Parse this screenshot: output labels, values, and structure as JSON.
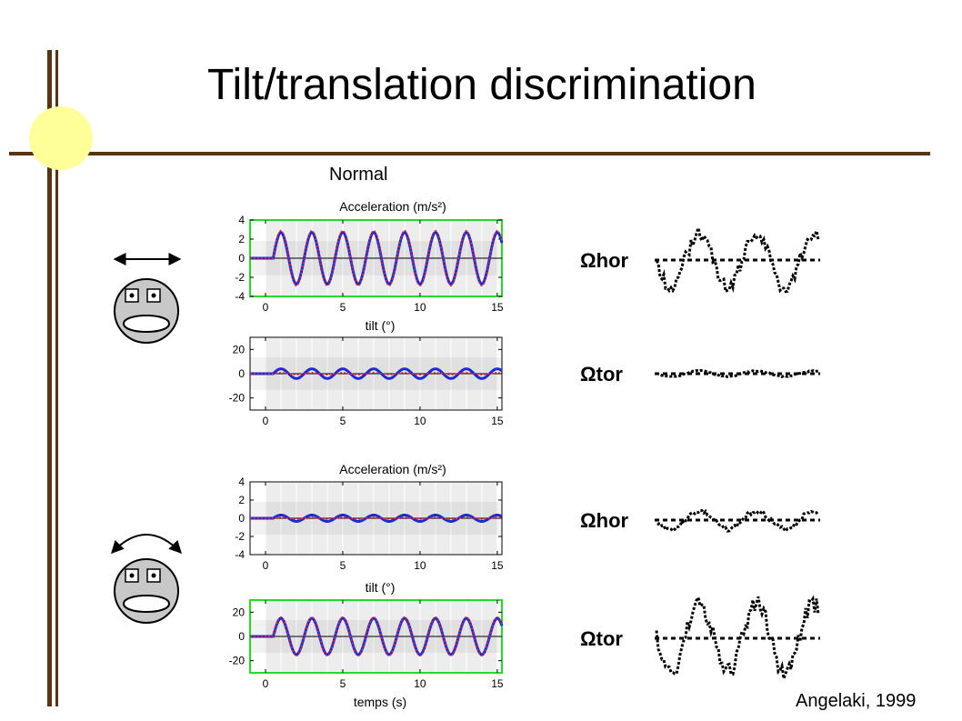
{
  "slide": {
    "title": "Tilt/translation discrimination",
    "subtitle": "Normal",
    "credit": "Angelaki, 1999",
    "xlabel": "temps (s)",
    "accent_colors": {
      "frame": "#5a3410",
      "circle": "#ffff99",
      "highlight_box": "#22dd22",
      "model_line": "#1a2ad6",
      "reference_dash": "#ff2020"
    }
  },
  "figures": {
    "right_panel_labels": [
      "Ωhor",
      "Ωtor",
      "Ωhor",
      "Ωtor"
    ],
    "icons": [
      "double-arrow-horizontal-icon",
      "monkey-face-icon",
      "curved-double-arrow-icon",
      "monkey-face-icon"
    ]
  },
  "chart_data": [
    {
      "type": "line",
      "title": "Acceleration (m/s²)",
      "xlabel": "",
      "x_ticks": [
        0,
        5,
        10,
        15
      ],
      "y_ticks": [
        4,
        2,
        0,
        -2,
        -4
      ],
      "xlim": [
        -1,
        15.3
      ],
      "ylim": [
        -4,
        4
      ],
      "highlighted": true,
      "series": [
        {
          "kind": "sine",
          "onset": 0.5,
          "amplitude": 2.7,
          "period": 2,
          "baseline": 0
        },
        {
          "kind": "sine-reference",
          "onset": 0.5,
          "amplitude": 2.9,
          "period": 2,
          "baseline": 0
        }
      ]
    },
    {
      "type": "line",
      "title": "tilt (°)",
      "xlabel": "",
      "x_ticks": [
        0,
        5,
        10,
        15
      ],
      "y_ticks": [
        20,
        0,
        -20
      ],
      "xlim": [
        -1,
        15.3
      ],
      "ylim": [
        -30,
        30
      ],
      "highlighted": false,
      "series": [
        {
          "kind": "sine",
          "onset": 0.5,
          "amplitude": 4,
          "period": 2,
          "baseline": 0
        },
        {
          "kind": "sine-reference",
          "onset": 0.5,
          "amplitude": 0.8,
          "period": 2,
          "baseline": 0
        }
      ]
    },
    {
      "type": "line",
      "title": "Acceleration (m/s²)",
      "xlabel": "",
      "x_ticks": [
        0,
        5,
        10,
        15
      ],
      "y_ticks": [
        4,
        2,
        0,
        -2,
        -4
      ],
      "xlim": [
        -1,
        15.3
      ],
      "ylim": [
        -4,
        4
      ],
      "highlighted": false,
      "series": [
        {
          "kind": "sine",
          "onset": 0.5,
          "amplitude": 0.35,
          "period": 2,
          "baseline": 0
        },
        {
          "kind": "sine-reference",
          "onset": 0.5,
          "amplitude": 0.1,
          "period": 2,
          "baseline": 0
        }
      ]
    },
    {
      "type": "line",
      "title": "tilt (°)",
      "xlabel": "temps (s)",
      "x_ticks": [
        0,
        5,
        10,
        15
      ],
      "y_ticks": [
        20,
        0,
        -20
      ],
      "xlim": [
        -1,
        15.3
      ],
      "ylim": [
        -30,
        30
      ],
      "highlighted": true,
      "series": [
        {
          "kind": "sine",
          "onset": 0.5,
          "amplitude": 15,
          "period": 2,
          "baseline": 0
        },
        {
          "kind": "sine-reference",
          "onset": 0.5,
          "amplitude": 16,
          "period": 2,
          "baseline": 0
        }
      ]
    }
  ]
}
